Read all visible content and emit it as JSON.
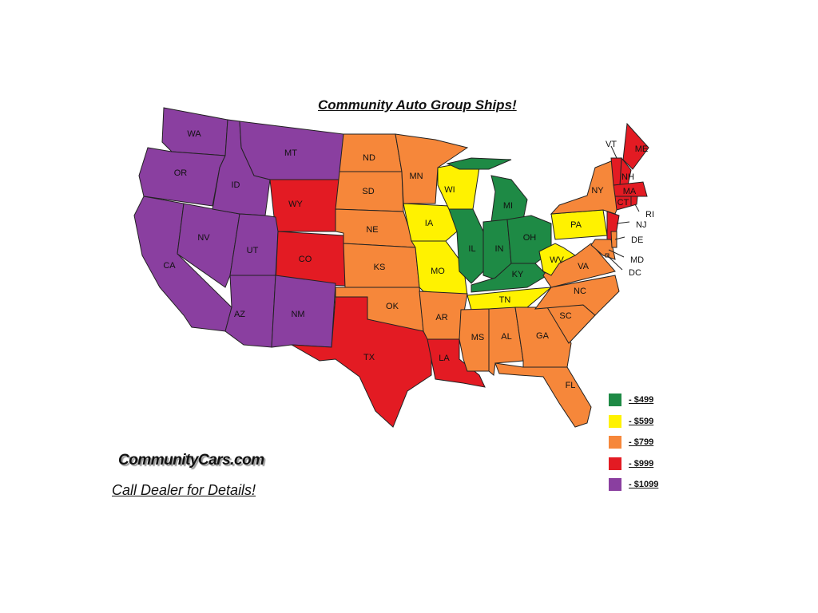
{
  "title": "Community Auto Group Ships!",
  "logo_text": "CommunityCars.com",
  "footer": "Call Dealer for Details!",
  "tiers": {
    "green": {
      "label": "- $499",
      "color": "#1e8a45"
    },
    "yellow": {
      "label": "- $599",
      "color": "#fff200"
    },
    "orange": {
      "label": "- $799",
      "color": "#f6873a"
    },
    "red": {
      "label": "- $999",
      "color": "#e31b23"
    },
    "purple": {
      "label": "- $1099",
      "color": "#8a3fa0"
    }
  },
  "legend_order": [
    "green",
    "yellow",
    "orange",
    "red",
    "purple"
  ],
  "states": {
    "WA": "purple",
    "OR": "purple",
    "CA": "purple",
    "NV": "purple",
    "ID": "purple",
    "MT": "purple",
    "UT": "purple",
    "AZ": "purple",
    "NM": "purple",
    "WY": "red",
    "CO": "red",
    "TX": "red",
    "LA": "red",
    "ME": "red",
    "VT": "red",
    "NH": "red",
    "MA": "red",
    "CT": "red",
    "RI": "red",
    "NJ": "red",
    "ND": "orange",
    "SD": "orange",
    "NE": "orange",
    "KS": "orange",
    "OK": "orange",
    "MN": "orange",
    "AR": "orange",
    "MS": "orange",
    "AL": "orange",
    "GA": "orange",
    "FL": "orange",
    "SC": "orange",
    "NC": "orange",
    "VA": "orange",
    "NY": "orange",
    "MD": "orange",
    "DE": "orange",
    "DC": "orange",
    "WI": "yellow",
    "IA": "yellow",
    "MO": "yellow",
    "TN": "yellow",
    "WV": "yellow",
    "PA": "yellow",
    "MI": "green",
    "IL": "green",
    "IN": "green",
    "OH": "green",
    "KY": "green"
  }
}
